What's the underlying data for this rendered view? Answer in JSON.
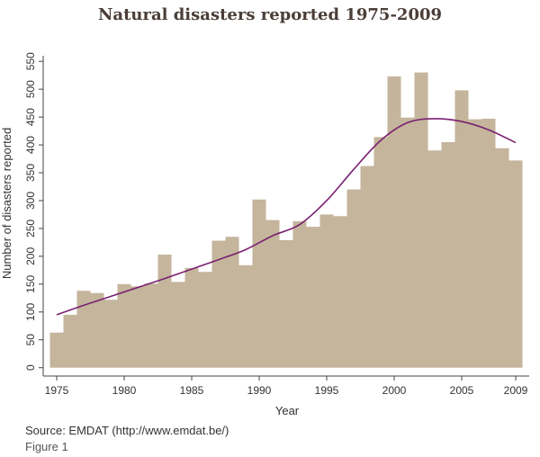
{
  "chart_data": {
    "type": "bar",
    "title": "Natural disasters reported 1975-2009",
    "xlabel": "Year",
    "ylabel": "Number of disasters reported",
    "x_ticks": [
      1975,
      1980,
      1985,
      1990,
      1995,
      2000,
      2005,
      2009
    ],
    "y_ticks": [
      0,
      50,
      100,
      150,
      200,
      250,
      300,
      350,
      400,
      450,
      500,
      550
    ],
    "xlim": [
      1974,
      2010
    ],
    "ylim": [
      -15,
      560
    ],
    "grid": false,
    "bar_color": "#c4b59c",
    "line_color": "#7a2070",
    "categories": [
      1975,
      1976,
      1977,
      1978,
      1979,
      1980,
      1981,
      1982,
      1983,
      1984,
      1985,
      1986,
      1987,
      1988,
      1989,
      1990,
      1991,
      1992,
      1993,
      1994,
      1995,
      1996,
      1997,
      1998,
      1999,
      2000,
      2001,
      2002,
      2003,
      2004,
      2005,
      2006,
      2007,
      2008,
      2009
    ],
    "values": [
      63,
      95,
      138,
      134,
      122,
      150,
      146,
      151,
      203,
      154,
      179,
      172,
      228,
      235,
      184,
      302,
      265,
      229,
      263,
      253,
      275,
      272,
      320,
      362,
      414,
      523,
      449,
      530,
      390,
      405,
      498,
      446,
      447,
      394,
      372
    ],
    "trend": {
      "x": [
        1975,
        1977,
        1979,
        1981,
        1983,
        1985,
        1987,
        1989,
        1991,
        1993,
        1995,
        1997,
        1999,
        2001,
        2003,
        2005,
        2007,
        2009
      ],
      "y": [
        95,
        112,
        128,
        144,
        160,
        177,
        194,
        212,
        237,
        257,
        300,
        356,
        408,
        440,
        447,
        442,
        427,
        404
      ]
    }
  },
  "footer": {
    "source": "Source: EMDAT (http://www.emdat.be/)",
    "figure": "Figure 1"
  }
}
